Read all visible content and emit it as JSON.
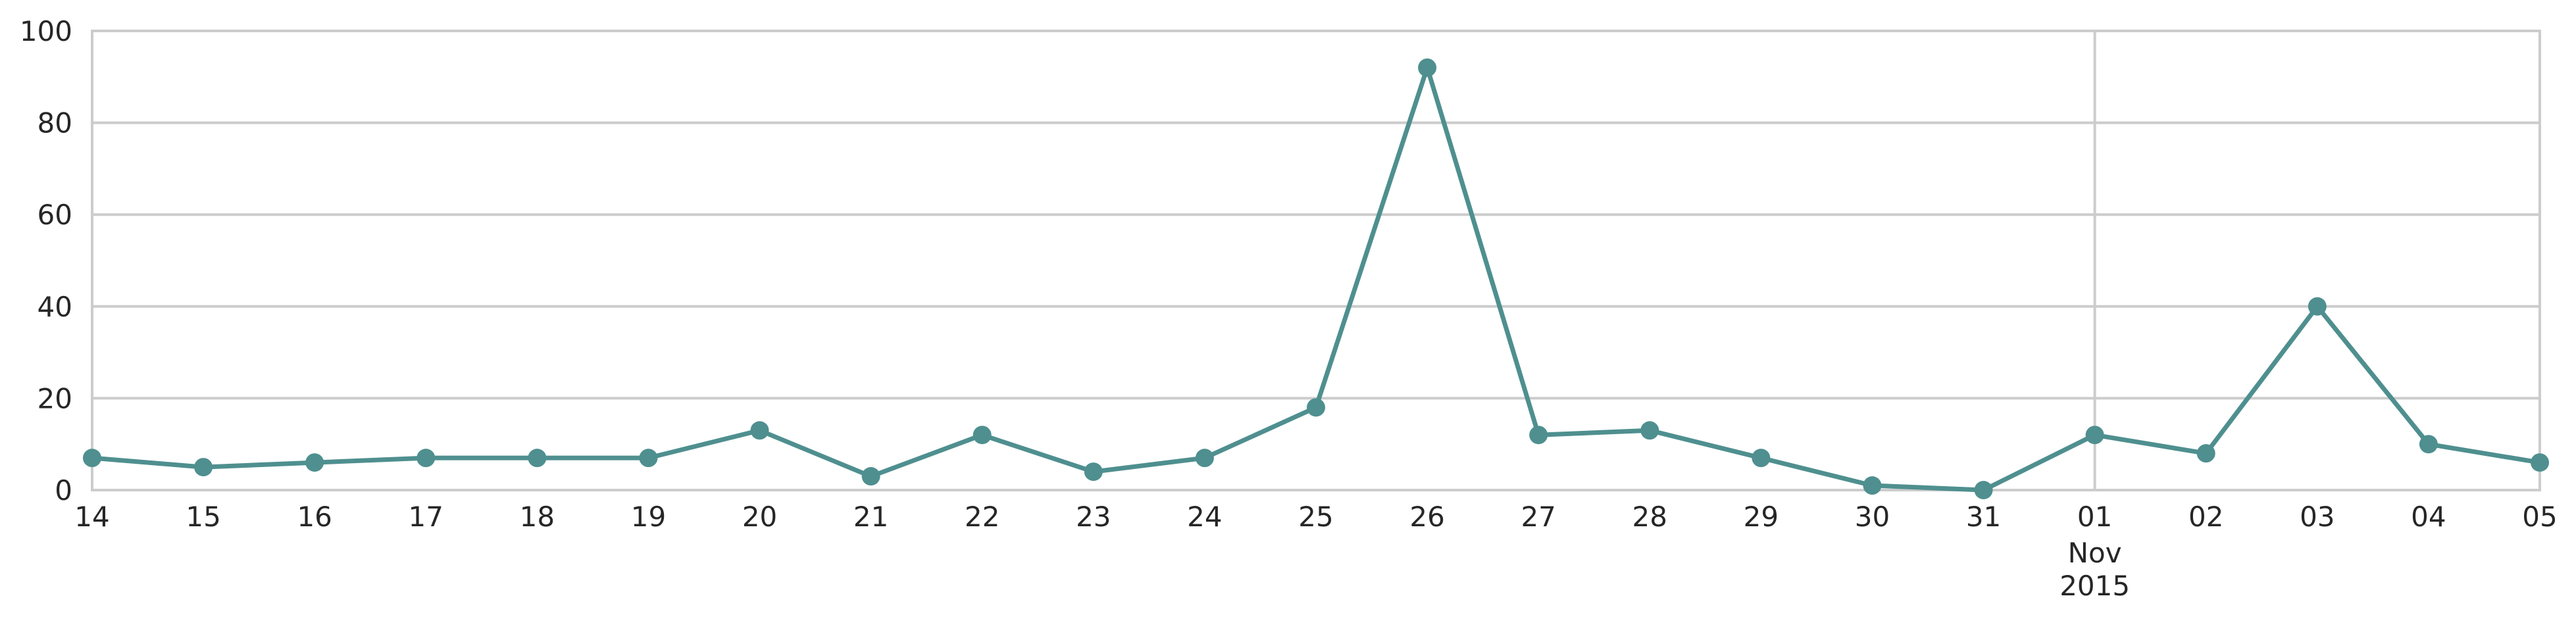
{
  "chart_data": {
    "type": "line",
    "title": "",
    "xlabel": "",
    "ylabel": "",
    "ylim": [
      0,
      100
    ],
    "yticks": [
      "0",
      "20",
      "40",
      "60",
      "80",
      "100"
    ],
    "x": [
      "2015-10-14",
      "2015-10-15",
      "2015-10-16",
      "2015-10-17",
      "2015-10-18",
      "2015-10-19",
      "2015-10-20",
      "2015-10-21",
      "2015-10-22",
      "2015-10-23",
      "2015-10-24",
      "2015-10-25",
      "2015-10-26",
      "2015-10-27",
      "2015-10-28",
      "2015-10-29",
      "2015-10-30",
      "2015-10-31",
      "2015-11-01",
      "2015-11-02",
      "2015-11-03",
      "2015-11-04",
      "2015-11-05"
    ],
    "xtick_labels": [
      "14",
      "15",
      "16",
      "17",
      "18",
      "19",
      "20",
      "21",
      "22",
      "23",
      "24",
      "25",
      "26",
      "27",
      "28",
      "29",
      "30",
      "31",
      "01",
      "02",
      "03",
      "04",
      "05"
    ],
    "month_label": {
      "text": "Nov",
      "year": "2015",
      "at": "2015-11-01"
    },
    "series": [
      {
        "values": [
          7,
          5,
          6,
          7,
          7,
          7,
          13,
          3,
          12,
          4,
          7,
          18,
          92,
          12,
          13,
          7,
          1,
          0,
          12,
          8,
          40,
          10,
          6
        ],
        "color": "#4f8f8f"
      }
    ],
    "grid": {
      "horizontal": true,
      "vertical_at": "2015-11-01"
    }
  }
}
